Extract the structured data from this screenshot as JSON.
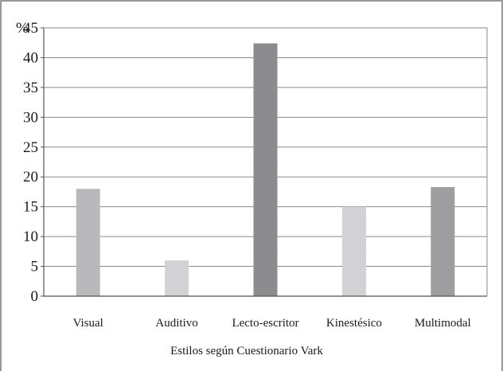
{
  "chart_data": {
    "type": "bar",
    "title": "",
    "xlabel": "Estilos según Cuestionario Vark",
    "ylabel": "%",
    "ylim": [
      0,
      45
    ],
    "yticks": [
      0,
      5,
      10,
      15,
      20,
      25,
      30,
      35,
      40,
      45
    ],
    "grid": true,
    "legend": "none",
    "categories": [
      "Visual",
      "Auditivo",
      "Lecto-escritor",
      "Kinestésico",
      "Multimodal"
    ],
    "values": [
      18,
      6,
      42.4,
      15,
      18.3
    ],
    "colors": [
      "#b9b9bb",
      "#d2d2d4",
      "#8c8c8e",
      "#d2d2d4",
      "#9e9ea0"
    ]
  },
  "colors": {
    "gridline": "#8a8a8a",
    "axis": "#555555",
    "border": "#555555",
    "background": "#ffffff"
  }
}
